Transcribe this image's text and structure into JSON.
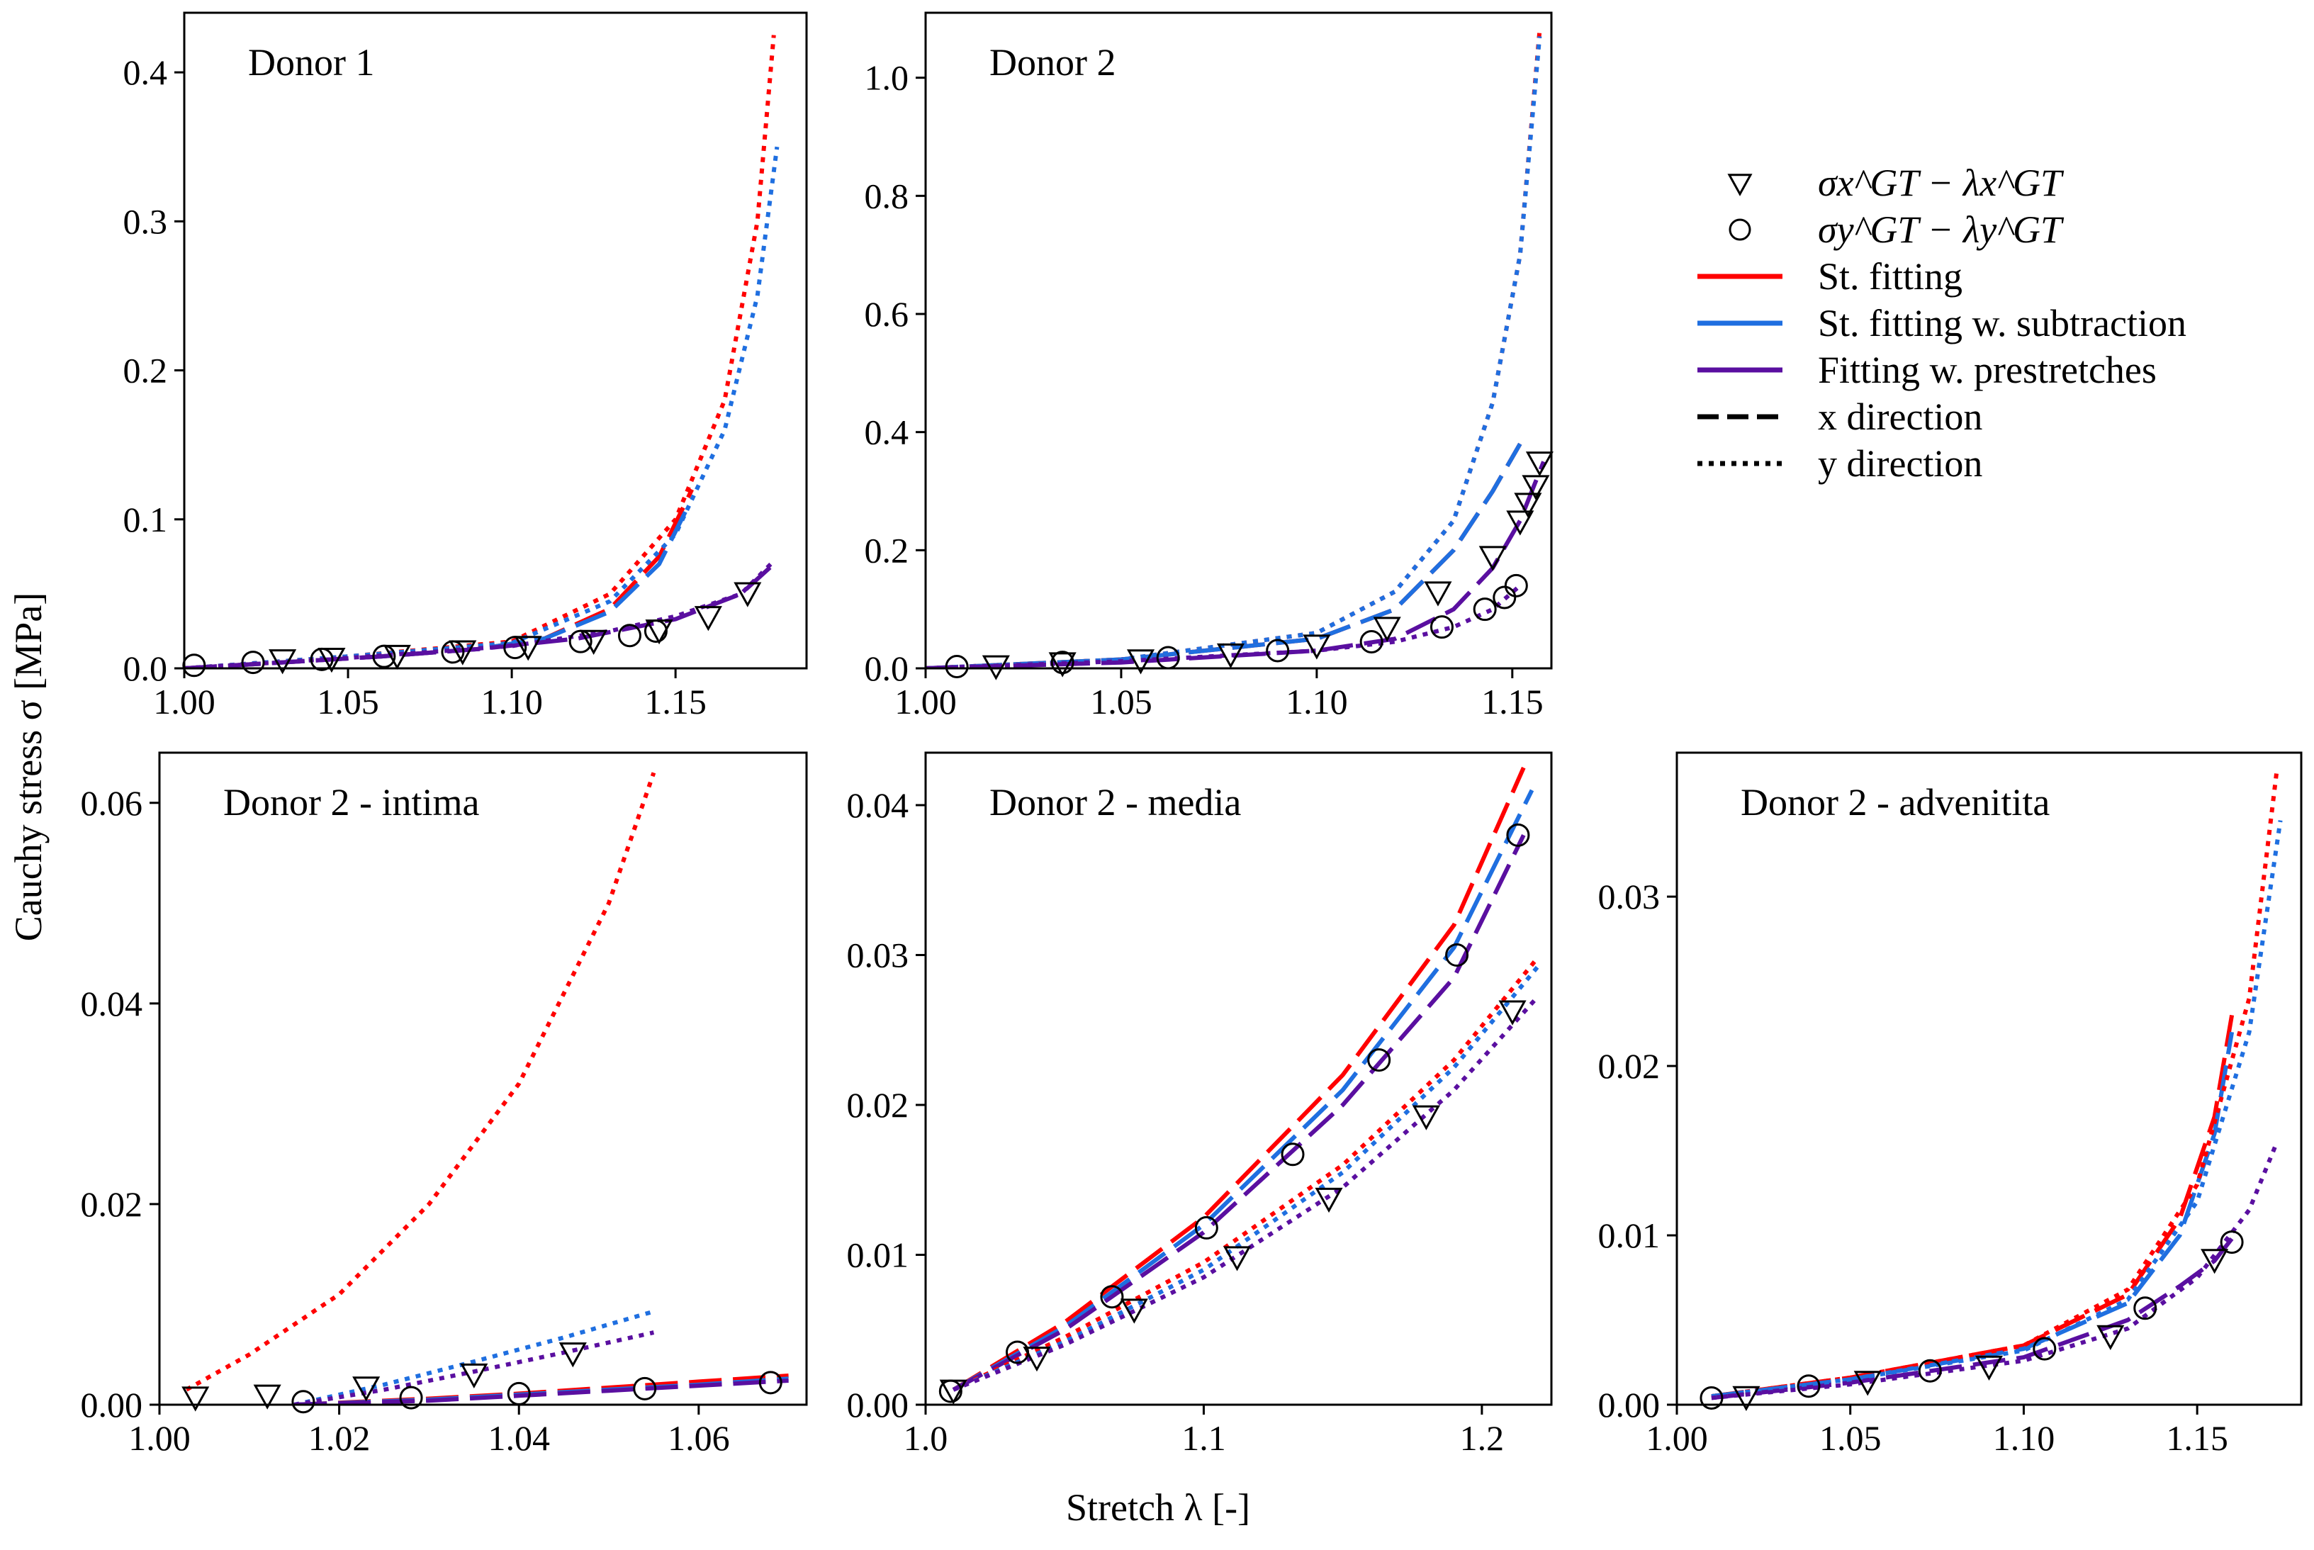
{
  "figure": {
    "ylabel": "Cauchy stress σ [MPa]",
    "xlabel": "Stretch λ [-]"
  },
  "legend": {
    "items": [
      {
        "key": "gt_x",
        "kind": "marker",
        "marker": "triangle",
        "label": "σx^GT − λx^GT"
      },
      {
        "key": "gt_y",
        "kind": "marker",
        "marker": "circle",
        "label": "σy^GT − λy^GT"
      },
      {
        "key": "st",
        "kind": "line",
        "color": "#ff0000",
        "dash": "solid",
        "label": "St. fitting"
      },
      {
        "key": "sub",
        "kind": "line",
        "color": "#1f6fe0",
        "dash": "solid",
        "label": "St. fitting w. subtraction"
      },
      {
        "key": "pre",
        "kind": "line",
        "color": "#5a0fa0",
        "dash": "solid",
        "label": "Fitting w. prestretches"
      },
      {
        "key": "xdir",
        "kind": "line",
        "color": "#000000",
        "dash": "dashed",
        "label": "x direction"
      },
      {
        "key": "ydir",
        "kind": "line",
        "color": "#000000",
        "dash": "dotted",
        "label": "y direction"
      }
    ]
  },
  "colors": {
    "st": "#ff0000",
    "sub": "#1f6fe0",
    "pre": "#5a0fa0"
  },
  "chart_data": [
    {
      "type": "line",
      "title": "Donor 1",
      "xlim": [
        1.0,
        1.19
      ],
      "ylim": [
        0.0,
        0.44
      ],
      "xticks": [
        1.0,
        1.05,
        1.1,
        1.15
      ],
      "xtick_labels": [
        "1.00",
        "1.05",
        "1.10",
        "1.15"
      ],
      "yticks": [
        0.0,
        0.1,
        0.2,
        0.3,
        0.4
      ],
      "ytick_labels": [
        "0.0",
        "0.1",
        "0.2",
        "0.3",
        "0.4"
      ],
      "curves": [
        {
          "model": "st",
          "dir": "x",
          "x": [
            1.0,
            1.03,
            1.06,
            1.09,
            1.11,
            1.13,
            1.145,
            1.155
          ],
          "y": [
            0.0,
            0.004,
            0.008,
            0.013,
            0.02,
            0.04,
            0.075,
            0.12
          ]
        },
        {
          "model": "sub",
          "dir": "x",
          "x": [
            1.0,
            1.03,
            1.06,
            1.09,
            1.11,
            1.13,
            1.145,
            1.153
          ],
          "y": [
            0.0,
            0.004,
            0.008,
            0.013,
            0.02,
            0.038,
            0.07,
            0.105
          ]
        },
        {
          "model": "pre",
          "dir": "x",
          "x": [
            1.0,
            1.03,
            1.06,
            1.09,
            1.12,
            1.15,
            1.17,
            1.18
          ],
          "y": [
            0.0,
            0.004,
            0.008,
            0.013,
            0.02,
            0.033,
            0.05,
            0.07
          ]
        },
        {
          "model": "st",
          "dir": "y",
          "x": [
            1.0,
            1.05,
            1.1,
            1.13,
            1.15,
            1.165,
            1.175,
            1.18
          ],
          "y": [
            0.0,
            0.008,
            0.018,
            0.05,
            0.1,
            0.18,
            0.3,
            0.425
          ]
        },
        {
          "model": "sub",
          "dir": "y",
          "x": [
            1.0,
            1.05,
            1.1,
            1.13,
            1.15,
            1.165,
            1.175,
            1.181
          ],
          "y": [
            0.0,
            0.008,
            0.017,
            0.045,
            0.09,
            0.16,
            0.25,
            0.35
          ]
        },
        {
          "model": "pre",
          "dir": "y",
          "x": [
            1.0,
            1.05,
            1.1,
            1.13,
            1.15,
            1.17,
            1.18
          ],
          "y": [
            0.0,
            0.007,
            0.015,
            0.025,
            0.035,
            0.05,
            0.072
          ]
        }
      ],
      "markers_x": {
        "x": [
          1.03,
          1.045,
          1.065,
          1.085,
          1.105,
          1.125,
          1.145,
          1.16,
          1.172
        ],
        "y": [
          0.006,
          0.007,
          0.009,
          0.012,
          0.015,
          0.019,
          0.026,
          0.035,
          0.051
        ]
      },
      "markers_y": {
        "x": [
          1.003,
          1.021,
          1.042,
          1.061,
          1.082,
          1.101,
          1.121,
          1.136,
          1.144
        ],
        "y": [
          0.002,
          0.004,
          0.006,
          0.008,
          0.011,
          0.014,
          0.018,
          0.022,
          0.025
        ]
      }
    },
    {
      "type": "line",
      "title": "Donor 2",
      "xlim": [
        1.0,
        1.16
      ],
      "ylim": [
        0.0,
        1.11
      ],
      "xticks": [
        1.0,
        1.05,
        1.1,
        1.15
      ],
      "xtick_labels": [
        "1.00",
        "1.05",
        "1.10",
        "1.15"
      ],
      "yticks": [
        0.0,
        0.2,
        0.4,
        0.6,
        0.8,
        1.0
      ],
      "ytick_labels": [
        "0.0",
        "0.2",
        "0.4",
        "0.6",
        "0.8",
        "1.0"
      ],
      "curves": [
        {
          "model": "st",
          "dir": "x",
          "x": [
            1.0,
            1.05,
            1.1,
            1.12,
            1.135,
            1.145,
            1.152
          ],
          "y": [
            0.0,
            0.015,
            0.05,
            0.1,
            0.2,
            0.3,
            0.38
          ]
        },
        {
          "model": "sub",
          "dir": "x",
          "x": [
            1.0,
            1.05,
            1.1,
            1.12,
            1.135,
            1.145,
            1.152
          ],
          "y": [
            0.0,
            0.015,
            0.05,
            0.1,
            0.2,
            0.3,
            0.38
          ]
        },
        {
          "model": "pre",
          "dir": "x",
          "x": [
            1.0,
            1.05,
            1.1,
            1.12,
            1.135,
            1.145,
            1.152,
            1.158
          ],
          "y": [
            0.0,
            0.01,
            0.03,
            0.05,
            0.1,
            0.17,
            0.25,
            0.35
          ]
        },
        {
          "model": "st",
          "dir": "y",
          "x": [
            1.0,
            1.05,
            1.1,
            1.12,
            1.135,
            1.145,
            1.152,
            1.157
          ],
          "y": [
            0.0,
            0.015,
            0.06,
            0.13,
            0.25,
            0.45,
            0.7,
            1.08
          ]
        },
        {
          "model": "sub",
          "dir": "y",
          "x": [
            1.0,
            1.05,
            1.1,
            1.12,
            1.135,
            1.145,
            1.152,
            1.157
          ],
          "y": [
            0.0,
            0.015,
            0.06,
            0.13,
            0.25,
            0.45,
            0.7,
            1.07
          ]
        },
        {
          "model": "pre",
          "dir": "y",
          "x": [
            1.0,
            1.05,
            1.1,
            1.12,
            1.135,
            1.145,
            1.152
          ],
          "y": [
            0.0,
            0.012,
            0.03,
            0.045,
            0.07,
            0.1,
            0.14
          ]
        }
      ],
      "markers_x": {
        "x": [
          1.018,
          1.035,
          1.055,
          1.078,
          1.1,
          1.118,
          1.131,
          1.145,
          1.152,
          1.154,
          1.156,
          1.157
        ],
        "y": [
          0.005,
          0.01,
          0.015,
          0.025,
          0.04,
          0.07,
          0.13,
          0.19,
          0.25,
          0.28,
          0.31,
          0.35
        ]
      },
      "markers_y": {
        "x": [
          1.008,
          1.035,
          1.062,
          1.09,
          1.114,
          1.132,
          1.143,
          1.148,
          1.151
        ],
        "y": [
          0.003,
          0.01,
          0.018,
          0.03,
          0.045,
          0.07,
          0.1,
          0.12,
          0.14
        ]
      }
    },
    {
      "type": "line",
      "title": "Donor 2 - intima",
      "xlim": [
        1.0,
        1.072
      ],
      "ylim": [
        0.0,
        0.065
      ],
      "xticks": [
        1.0,
        1.02,
        1.04,
        1.06
      ],
      "xtick_labels": [
        "1.00",
        "1.02",
        "1.04",
        "1.06"
      ],
      "yticks": [
        0.0,
        0.02,
        0.04,
        0.06
      ],
      "ytick_labels": [
        "0.00",
        "0.02",
        "0.04",
        "0.06"
      ],
      "curves": [
        {
          "model": "st",
          "dir": "x",
          "x": [
            1.015,
            1.03,
            1.04,
            1.05,
            1.06,
            1.07
          ],
          "y": [
            0.0,
            0.0006,
            0.0011,
            0.0017,
            0.0023,
            0.0029
          ]
        },
        {
          "model": "sub",
          "dir": "x",
          "x": [
            1.015,
            1.03,
            1.04,
            1.05,
            1.06,
            1.07
          ],
          "y": [
            0.0,
            0.0005,
            0.001,
            0.0015,
            0.002,
            0.0026
          ]
        },
        {
          "model": "pre",
          "dir": "x",
          "x": [
            1.015,
            1.03,
            1.04,
            1.05,
            1.06,
            1.07
          ],
          "y": [
            0.0,
            0.0004,
            0.0009,
            0.0014,
            0.0019,
            0.0024
          ]
        },
        {
          "model": "st",
          "dir": "y",
          "x": [
            1.003,
            1.01,
            1.02,
            1.03,
            1.04,
            1.05,
            1.055
          ],
          "y": [
            0.0015,
            0.005,
            0.011,
            0.02,
            0.032,
            0.05,
            0.063
          ]
        },
        {
          "model": "sub",
          "dir": "y",
          "x": [
            1.015,
            1.025,
            1.035,
            1.045,
            1.055
          ],
          "y": [
            0.0,
            0.002,
            0.0043,
            0.0067,
            0.0093
          ]
        },
        {
          "model": "pre",
          "dir": "y",
          "x": [
            1.015,
            1.025,
            1.035,
            1.045,
            1.055
          ],
          "y": [
            0.0,
            0.0015,
            0.0033,
            0.0052,
            0.0072
          ]
        }
      ],
      "markers_x": {
        "x": [
          1.004,
          1.012,
          1.023,
          1.035,
          1.046
        ],
        "y": [
          0.0008,
          0.001,
          0.0018,
          0.0031,
          0.0052
        ]
      },
      "markers_y": {
        "x": [
          1.016,
          1.028,
          1.04,
          1.054,
          1.068
        ],
        "y": [
          0.0003,
          0.0007,
          0.0011,
          0.0016,
          0.0022
        ]
      }
    },
    {
      "type": "line",
      "title": "Donor 2 - media",
      "xlim": [
        1.0,
        1.225
      ],
      "ylim": [
        0.0,
        0.0435
      ],
      "xticks": [
        1.0,
        1.1,
        1.2
      ],
      "xtick_labels": [
        "1.0",
        "1.1",
        "1.2"
      ],
      "yticks": [
        0.0,
        0.01,
        0.02,
        0.03,
        0.04
      ],
      "ytick_labels": [
        "0.00",
        "0.01",
        "0.02",
        "0.03",
        "0.04"
      ],
      "curves": [
        {
          "model": "st",
          "dir": "x",
          "x": [
            1.01,
            1.05,
            1.1,
            1.15,
            1.19,
            1.215
          ],
          "y": [
            0.001,
            0.0055,
            0.0125,
            0.022,
            0.032,
            0.0425
          ]
        },
        {
          "model": "sub",
          "dir": "x",
          "x": [
            1.01,
            1.05,
            1.1,
            1.15,
            1.19,
            1.218
          ],
          "y": [
            0.001,
            0.0052,
            0.012,
            0.021,
            0.0305,
            0.041
          ]
        },
        {
          "model": "pre",
          "dir": "x",
          "x": [
            1.01,
            1.05,
            1.1,
            1.15,
            1.19,
            1.215
          ],
          "y": [
            0.001,
            0.005,
            0.0115,
            0.02,
            0.0285,
            0.038
          ]
        },
        {
          "model": "st",
          "dir": "y",
          "x": [
            1.01,
            1.05,
            1.1,
            1.15,
            1.19,
            1.22
          ],
          "y": [
            0.001,
            0.0045,
            0.0095,
            0.016,
            0.023,
            0.0298
          ]
        },
        {
          "model": "sub",
          "dir": "y",
          "x": [
            1.01,
            1.05,
            1.1,
            1.15,
            1.19,
            1.22
          ],
          "y": [
            0.001,
            0.0042,
            0.009,
            0.0155,
            0.0225,
            0.0292
          ]
        },
        {
          "model": "pre",
          "dir": "y",
          "x": [
            1.01,
            1.05,
            1.1,
            1.15,
            1.19,
            1.22
          ],
          "y": [
            0.001,
            0.004,
            0.0085,
            0.0145,
            0.021,
            0.0272
          ]
        }
      ],
      "markers_x": {
        "x": [
          1.01,
          1.04,
          1.075,
          1.112,
          1.145,
          1.18,
          1.211
        ],
        "y": [
          0.001,
          0.0032,
          0.0064,
          0.0099,
          0.0138,
          0.0193,
          0.0263
        ]
      },
      "markers_y": {
        "x": [
          1.009,
          1.033,
          1.067,
          1.101,
          1.132,
          1.163,
          1.191,
          1.213
        ],
        "y": [
          0.0009,
          0.0035,
          0.0072,
          0.0118,
          0.0167,
          0.023,
          0.03,
          0.038
        ]
      }
    },
    {
      "type": "line",
      "title": "Donor 2 - advenitita",
      "xlim": [
        1.0,
        1.18
      ],
      "ylim": [
        0.0,
        0.0385
      ],
      "xticks": [
        1.0,
        1.05,
        1.1,
        1.15
      ],
      "xtick_labels": [
        "1.00",
        "1.05",
        "1.10",
        "1.15"
      ],
      "yticks": [
        0.0,
        0.01,
        0.02,
        0.03
      ],
      "ytick_labels": [
        "0.00",
        "0.01",
        "0.02",
        "0.03"
      ],
      "curves": [
        {
          "model": "st",
          "dir": "x",
          "x": [
            1.01,
            1.05,
            1.1,
            1.13,
            1.145,
            1.155,
            1.16
          ],
          "y": [
            0.0005,
            0.0016,
            0.0035,
            0.0065,
            0.011,
            0.017,
            0.023
          ]
        },
        {
          "model": "sub",
          "dir": "x",
          "x": [
            1.01,
            1.05,
            1.1,
            1.13,
            1.145,
            1.155,
            1.16
          ],
          "y": [
            0.0005,
            0.0015,
            0.0033,
            0.006,
            0.01,
            0.016,
            0.022
          ]
        },
        {
          "model": "pre",
          "dir": "x",
          "x": [
            1.01,
            1.05,
            1.1,
            1.13,
            1.145,
            1.155,
            1.16
          ],
          "y": [
            0.0004,
            0.0013,
            0.0028,
            0.005,
            0.007,
            0.0085,
            0.0098
          ]
        },
        {
          "model": "st",
          "dir": "y",
          "x": [
            1.01,
            1.05,
            1.1,
            1.13,
            1.15,
            1.165,
            1.173
          ],
          "y": [
            0.0005,
            0.0016,
            0.0035,
            0.0068,
            0.013,
            0.024,
            0.0375
          ]
        },
        {
          "model": "sub",
          "dir": "y",
          "x": [
            1.01,
            1.05,
            1.1,
            1.13,
            1.15,
            1.165,
            1.174
          ],
          "y": [
            0.0005,
            0.0015,
            0.0032,
            0.0062,
            0.012,
            0.022,
            0.0345
          ]
        },
        {
          "model": "pre",
          "dir": "y",
          "x": [
            1.01,
            1.05,
            1.1,
            1.13,
            1.15,
            1.165,
            1.173
          ],
          "y": [
            0.0004,
            0.0012,
            0.0026,
            0.0045,
            0.0075,
            0.0115,
            0.0155
          ]
        }
      ],
      "markers_x": {
        "x": [
          1.02,
          1.055,
          1.09,
          1.125,
          1.155
        ],
        "y": [
          0.0005,
          0.0014,
          0.0023,
          0.0041,
          0.0086
        ]
      },
      "markers_y": {
        "x": [
          1.01,
          1.038,
          1.073,
          1.106,
          1.135,
          1.16
        ],
        "y": [
          0.0004,
          0.0011,
          0.002,
          0.0033,
          0.0057,
          0.0096
        ]
      }
    }
  ]
}
